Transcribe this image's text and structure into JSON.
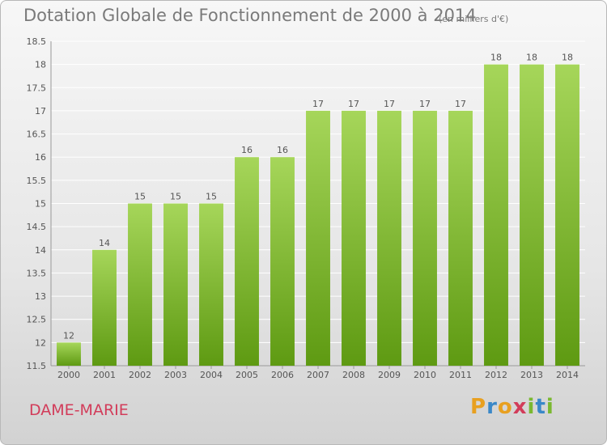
{
  "header": {
    "title": "Dotation Globale de Fonctionnement de 2000 à 2014",
    "subtitle": "(en milliers d'€)"
  },
  "footer": {
    "commune": "DAME-MARIE",
    "logo_text": "Proxiti",
    "logo_letters": [
      {
        "ch": "P",
        "color": "#e8a020"
      },
      {
        "ch": "r",
        "color": "#3a88c8"
      },
      {
        "ch": "o",
        "color": "#e8a020"
      },
      {
        "ch": "x",
        "color": "#d23c5a"
      },
      {
        "ch": "i",
        "color": "#7ab830"
      },
      {
        "ch": "t",
        "color": "#3a88c8"
      },
      {
        "ch": "i",
        "color": "#7ab830"
      }
    ]
  },
  "colors": {
    "bar_light": "#a6d65a",
    "bar_dark": "#5e9a12",
    "grid": "#ffffff",
    "text": "#7a7a7a",
    "commune": "#d23c5a"
  },
  "chart_data": {
    "type": "bar",
    "title": "Dotation Globale de Fonctionnement de 2000 à 2014",
    "subtitle": "(en milliers d'€)",
    "xlabel": "",
    "ylabel": "",
    "categories": [
      "2000",
      "2001",
      "2002",
      "2003",
      "2004",
      "2005",
      "2006",
      "2007",
      "2008",
      "2009",
      "2010",
      "2011",
      "2012",
      "2013",
      "2014"
    ],
    "values": [
      12,
      14,
      15,
      15,
      15,
      16,
      16,
      17,
      17,
      17,
      17,
      17,
      18,
      18,
      18
    ],
    "value_labels": [
      "12",
      "14",
      "15",
      "15",
      "15",
      "16",
      "16",
      "17",
      "17",
      "17",
      "17",
      "17",
      "18",
      "18",
      "18"
    ],
    "ylim": [
      11.5,
      18.5
    ],
    "yticks": [
      11.5,
      12,
      12.5,
      13,
      13.5,
      14,
      14.5,
      15,
      15.5,
      16,
      16.5,
      17,
      17.5,
      18,
      18.5
    ],
    "ytick_labels": [
      "11.5",
      "12",
      "12.5",
      "13",
      "13.5",
      "14",
      "14.5",
      "15",
      "15.5",
      "16",
      "16.5",
      "17",
      "17.5",
      "18",
      "18.5"
    ],
    "grid": true,
    "legend": "none"
  }
}
